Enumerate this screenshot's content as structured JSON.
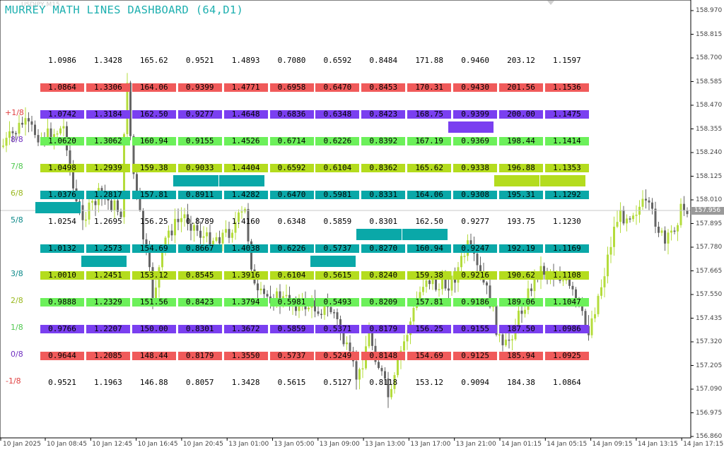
{
  "window": {
    "symbol": "USDJPY,M15",
    "title": "MURREY MATH LINES DASHBOARD (64,D1)"
  },
  "price_axis": {
    "labels": [
      "158.970",
      "158.815",
      "158.700",
      "158.585",
      "158.470",
      "158.355",
      "158.240",
      "158.125",
      "158.010",
      "157.895",
      "157.780",
      "157.665",
      "157.550",
      "157.435",
      "157.320",
      "157.205",
      "157.090",
      "156.975",
      "156.860"
    ],
    "current_price": "157.956"
  },
  "time_axis": {
    "labels": [
      "10 Jan 2025",
      "10 Jan 08:45",
      "10 Jan 12:45",
      "10 Jan 16:45",
      "10 Jan 20:45",
      "13 Jan 01:00",
      "13 Jan 05:00",
      "13 Jan 09:00",
      "13 Jan 13:00",
      "13 Jan 17:00",
      "13 Jan 21:00",
      "14 Jan 01:15",
      "14 Jan 05:15",
      "14 Jan 09:15",
      "14 Jan 13:15",
      "14 Jan 17:15"
    ]
  },
  "colors": {
    "red": "#f05a5a",
    "purple": "#7a3ff0",
    "green": "#6cf05a",
    "lime": "#b4dc1e",
    "teal": "#0aa8a8",
    "bull": "#b4dc3c",
    "bear": "#646464"
  },
  "row_labels": [
    "",
    "+1/8",
    "8/8",
    "7/8",
    "6/8",
    "5/8",
    "",
    "3/8",
    "2/8",
    "1/8",
    "0/8",
    "-1/8",
    ""
  ],
  "row_styles": [
    "none",
    "red",
    "purple",
    "green",
    "lime",
    "teal",
    "none",
    "teal",
    "lime",
    "green",
    "purple",
    "red",
    "none"
  ],
  "columns": [
    [
      "1.0986",
      "1.0864",
      "1.0742",
      "1.0620",
      "1.0498",
      "1.0376",
      "1.0254",
      "1.0132",
      "1.0010",
      "0.9888",
      "0.9766",
      "0.9644",
      "0.9521"
    ],
    [
      "1.3428",
      "1.3306",
      "1.3184",
      "1.3062",
      "1.2939",
      "1.2817",
      "1.2695",
      "1.2573",
      "1.2451",
      "1.2329",
      "1.2207",
      "1.2085",
      "1.1963"
    ],
    [
      "165.62",
      "164.06",
      "162.50",
      "160.94",
      "159.38",
      "157.81",
      "156.25",
      "154.69",
      "153.12",
      "151.56",
      "150.00",
      "148.44",
      "146.88"
    ],
    [
      "0.9521",
      "0.9399",
      "0.9277",
      "0.9155",
      "0.9033",
      "0.8911",
      "0.8789",
      "0.8667",
      "0.8545",
      "0.8423",
      "0.8301",
      "0.8179",
      "0.8057"
    ],
    [
      "1.4893",
      "1.4771",
      "1.4648",
      "1.4526",
      "1.4404",
      "1.4282",
      "1.4160",
      "1.4038",
      "1.3916",
      "1.3794",
      "1.3672",
      "1.3550",
      "1.3428"
    ],
    [
      "0.7080",
      "0.6958",
      "0.6836",
      "0.6714",
      "0.6592",
      "0.6470",
      "0.6348",
      "0.6226",
      "0.6104",
      "0.5981",
      "0.5859",
      "0.5737",
      "0.5615"
    ],
    [
      "0.6592",
      "0.6470",
      "0.6348",
      "0.6226",
      "0.6104",
      "0.5981",
      "0.5859",
      "0.5737",
      "0.5615",
      "0.5493",
      "0.5371",
      "0.5249",
      "0.5127"
    ],
    [
      "0.8484",
      "0.8453",
      "0.8423",
      "0.8392",
      "0.8362",
      "0.8331",
      "0.8301",
      "0.8270",
      "0.8240",
      "0.8209",
      "0.8179",
      "0.8148",
      "0.8118"
    ],
    [
      "171.88",
      "170.31",
      "168.75",
      "167.19",
      "165.62",
      "164.06",
      "162.50",
      "160.94",
      "159.38",
      "157.81",
      "156.25",
      "154.69",
      "153.12"
    ],
    [
      "0.9460",
      "0.9430",
      "0.9399",
      "0.9369",
      "0.9338",
      "0.9308",
      "0.9277",
      "0.9247",
      "0.9216",
      "0.9186",
      "0.9155",
      "0.9125",
      "0.9094"
    ],
    [
      "203.12",
      "201.56",
      "200.00",
      "198.44",
      "196.88",
      "195.31",
      "193.75",
      "192.19",
      "190.62",
      "189.06",
      "187.50",
      "185.94",
      "184.38"
    ],
    [
      "1.1597",
      "1.1536",
      "1.1475",
      "1.1414",
      "1.1353",
      "1.1292",
      "1.1230",
      "1.1169",
      "1.1108",
      "1.1047",
      "1.0986",
      "1.0925",
      "1.0864"
    ]
  ],
  "current_markers": [
    {
      "col": 0,
      "between_rows": [
        5,
        6
      ],
      "color": "teal"
    },
    {
      "col": 1,
      "between_rows": [
        7,
        8
      ],
      "color": "teal"
    },
    {
      "col": 2,
      "between_rows": [
        5,
        6
      ],
      "color": "none"
    },
    {
      "col": 3,
      "between_rows": [
        4,
        5
      ],
      "color": "teal"
    },
    {
      "col": 4,
      "between_rows": [
        4,
        5
      ],
      "color": "teal"
    },
    {
      "col": 6,
      "between_rows": [
        7,
        8
      ],
      "color": "teal"
    },
    {
      "col": 7,
      "between_rows": [
        6,
        7
      ],
      "color": "teal"
    },
    {
      "col": 8,
      "between_rows": [
        6,
        7
      ],
      "color": "teal"
    },
    {
      "col": 9,
      "between_rows": [
        2,
        3
      ],
      "color": "purple"
    },
    {
      "col": 10,
      "between_rows": [
        4,
        5
      ],
      "color": "lime"
    },
    {
      "col": 11,
      "between_rows": [
        4,
        5
      ],
      "color": "lime"
    }
  ]
}
